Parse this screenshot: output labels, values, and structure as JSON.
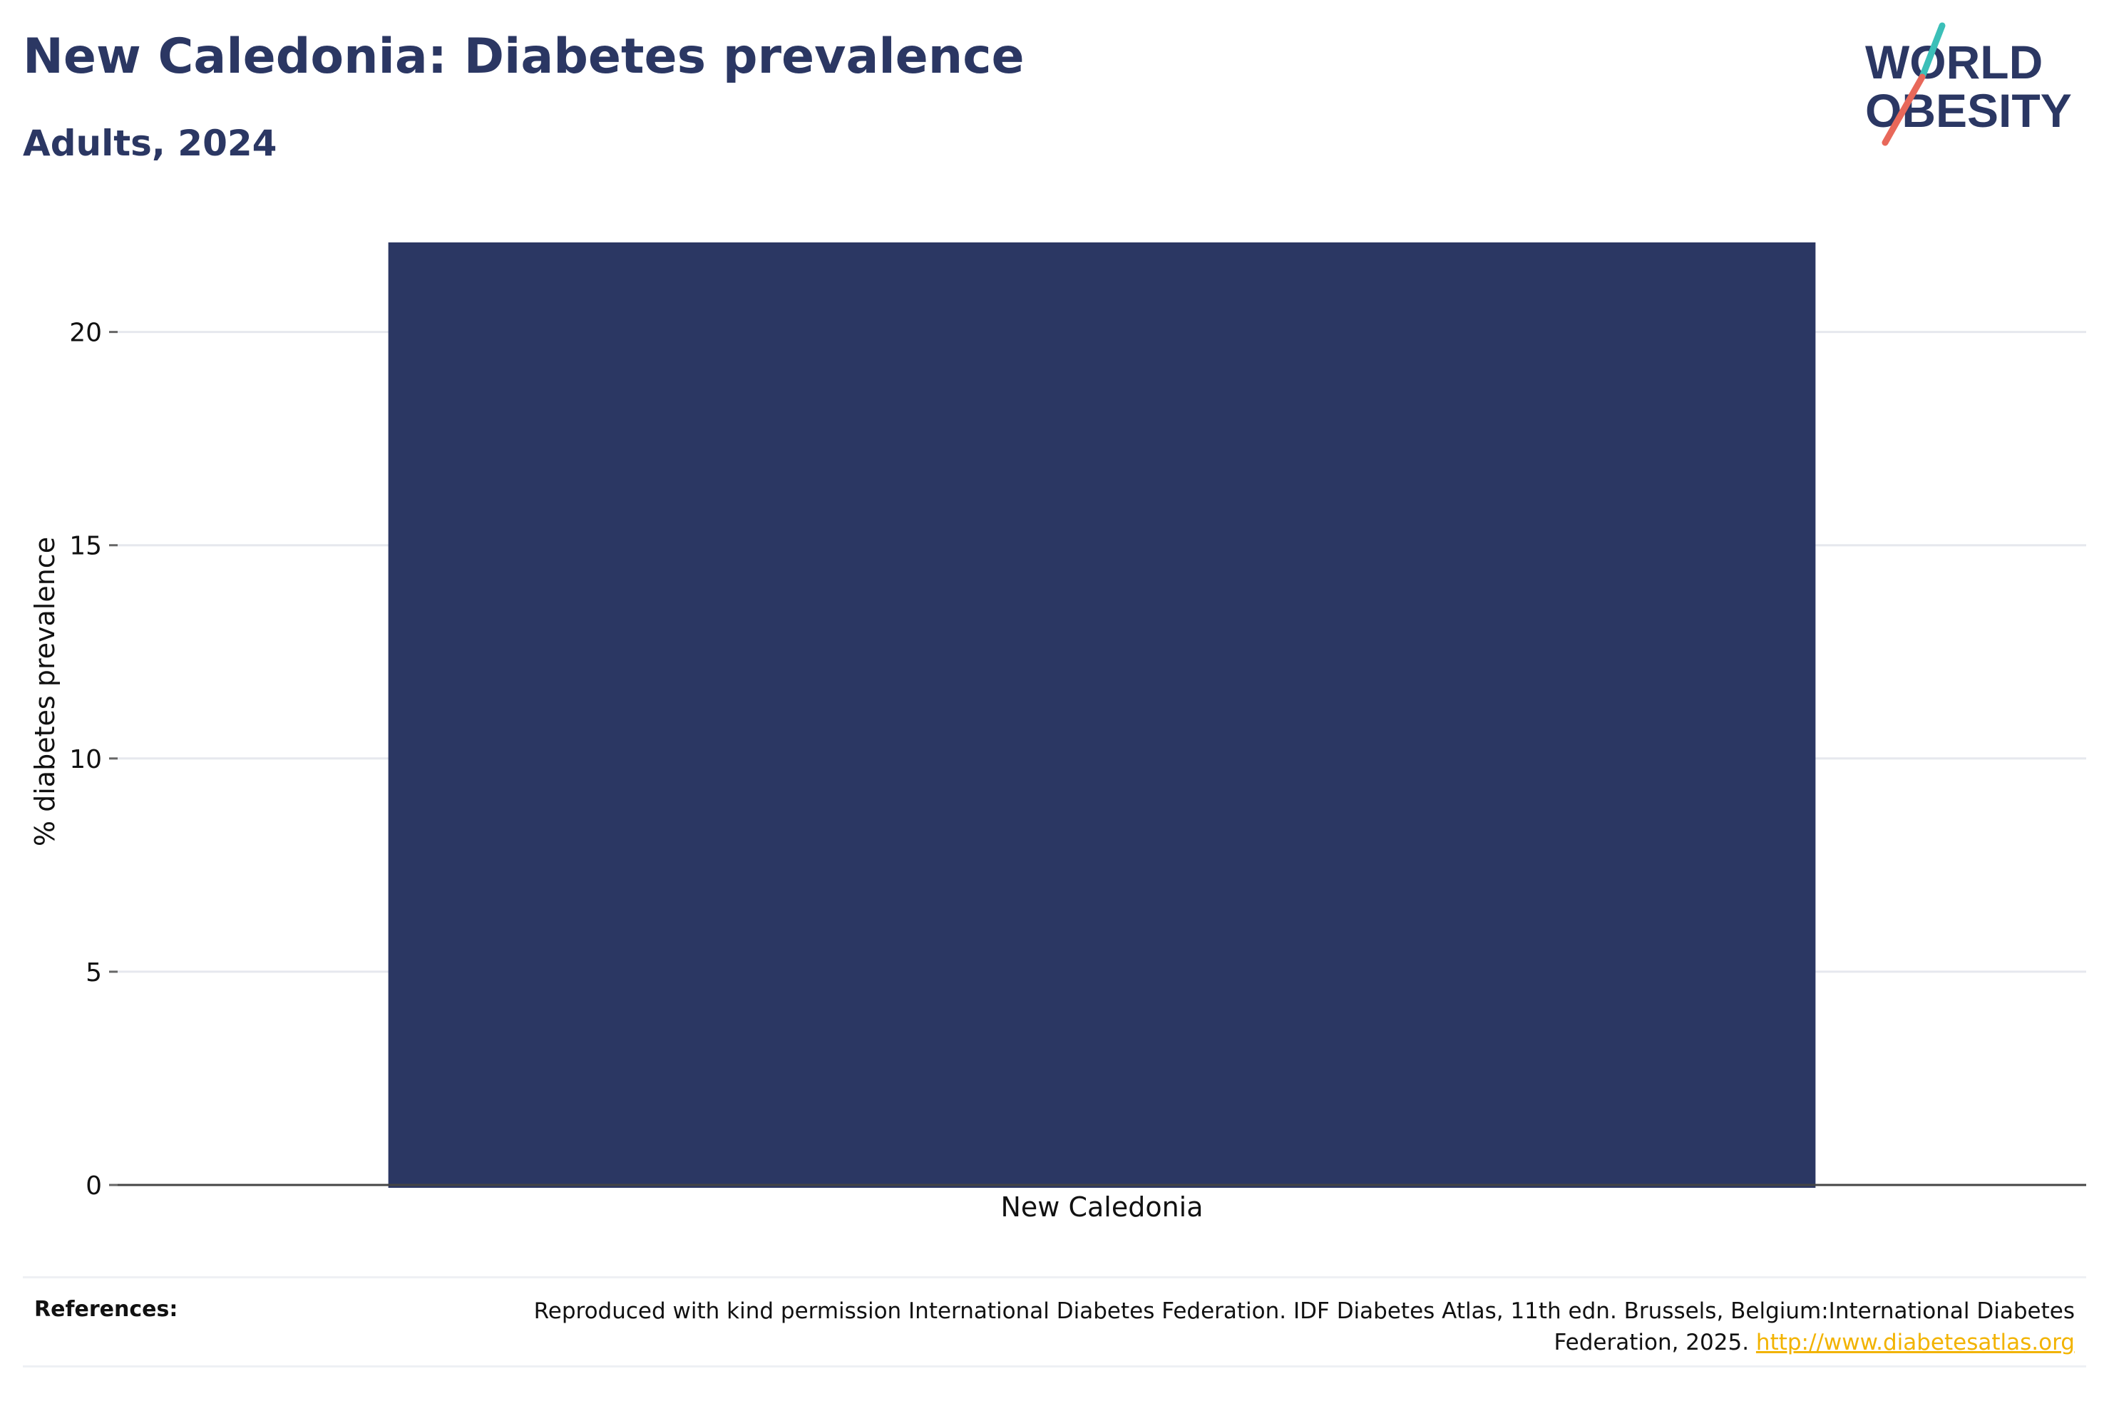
{
  "header": {
    "title": "New Caledonia: Diabetes prevalence",
    "subtitle": "Adults, 2024"
  },
  "logo": {
    "line1": "WORLD",
    "line2": "OBESITY",
    "colors": {
      "text": "#2b3763",
      "slash_top": "#3bbfb8",
      "slash_bottom": "#e8685a"
    }
  },
  "chart_data": {
    "type": "bar",
    "categories": [
      "New Caledonia"
    ],
    "values": [
      22.1
    ],
    "title": "New Caledonia: Diabetes prevalence",
    "subtitle": "Adults, 2024",
    "xlabel": "",
    "ylabel": "% diabetes prevalence",
    "ylim": [
      0,
      22.1
    ],
    "yticks": [
      0,
      5,
      10,
      15,
      20
    ],
    "grid": true,
    "legend": "none",
    "bar_color": "#2b3763"
  },
  "references": {
    "label": "References:",
    "text": "Reproduced with kind permission International Diabetes Federation. IDF Diabetes Atlas, 11th edn. Brussels, Belgium:International Diabetes Federation, 2025.",
    "link": "http://www.diabetesatlas.org"
  }
}
